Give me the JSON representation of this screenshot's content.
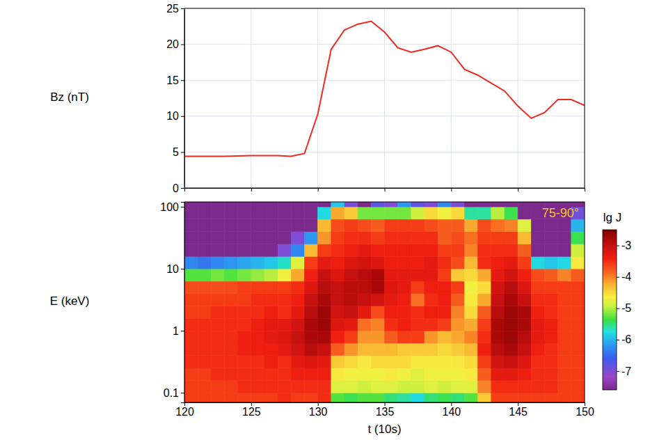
{
  "chart_data": [
    {
      "type": "line",
      "ylabel": "Bz (nT)",
      "x": [
        120,
        121,
        122,
        123,
        124,
        125,
        126,
        127,
        128,
        129,
        130,
        131,
        132,
        133,
        134,
        135,
        136,
        137,
        138,
        139,
        140,
        141,
        142,
        143,
        144,
        145,
        146,
        147,
        148,
        149,
        150
      ],
      "values": [
        4.4,
        4.4,
        4.4,
        4.4,
        4.45,
        4.5,
        4.5,
        4.5,
        4.4,
        4.8,
        10.3,
        19.3,
        22,
        22.8,
        23.2,
        21.7,
        19.5,
        18.9,
        19.3,
        19.8,
        18.9,
        16.5,
        15.7,
        14.6,
        13.5,
        11.4,
        9.7,
        10.5,
        12.3,
        12.3,
        11.5
      ],
      "color": "#ee2a1f",
      "xlim": [
        120,
        150
      ],
      "xticks": [
        120,
        125,
        130,
        135,
        140,
        145,
        150
      ],
      "ylim": [
        0,
        25
      ],
      "yticks": [
        0,
        5,
        10,
        15,
        20,
        25
      ],
      "grid": true,
      "tick_labels": "y"
    },
    {
      "type": "heatmap",
      "xlabel": "t (10s)",
      "ylabel": "E (keV)",
      "annotation": "75-90°",
      "log": "y",
      "xlim": [
        120,
        150
      ],
      "xticks": [
        120,
        125,
        130,
        135,
        140,
        145,
        150
      ],
      "ylim": [
        0.07,
        120
      ],
      "yticks": [
        0.1,
        1,
        10,
        100
      ],
      "x_bins": [
        120,
        121,
        122,
        123,
        124,
        125,
        126,
        127,
        128,
        129,
        130,
        131,
        132,
        133,
        134,
        135,
        136,
        137,
        138,
        139,
        140,
        141,
        142,
        143,
        144,
        145,
        146,
        147,
        148,
        149,
        150
      ],
      "y_bins": [
        0.0631,
        0.1,
        0.1585,
        0.2512,
        0.3981,
        0.631,
        1,
        1.585,
        2.512,
        3.981,
        6.31,
        10,
        15.85,
        25.12,
        39.81,
        63.1,
        100,
        158.5
      ],
      "cells": [
        [
          -3.6,
          -3.6,
          -3.6,
          -3.5,
          -3.5,
          -3.5,
          -3.5,
          -3.6,
          -3.6,
          -3.7,
          -5.3,
          -6.3,
          -7.6,
          -7.6,
          -7.6,
          -7.6,
          -7.6
        ],
        [
          -3.6,
          -3.6,
          -3.6,
          -3.5,
          -3.5,
          -3.5,
          -3.5,
          -3.6,
          -3.6,
          -3.7,
          -5.3,
          -6.4,
          -7.6,
          -7.6,
          -7.6,
          -7.6,
          -7.6
        ],
        [
          -3.6,
          -3.6,
          -3.5,
          -3.5,
          -3.5,
          -3.5,
          -3.5,
          -3.5,
          -3.6,
          -3.7,
          -5.2,
          -6.3,
          -7.6,
          -7.6,
          -7.6,
          -7.6,
          -7.6
        ],
        [
          -3.6,
          -3.6,
          -3.5,
          -3.5,
          -3.5,
          -3.5,
          -3.5,
          -3.5,
          -3.6,
          -3.7,
          -5.3,
          -6.2,
          -7.6,
          -7.6,
          -7.6,
          -7.6,
          -7.6
        ],
        [
          -3.6,
          -3.5,
          -3.5,
          -3.5,
          -3.4,
          -3.4,
          -3.5,
          -3.5,
          -3.6,
          -3.6,
          -5.2,
          -6.1,
          -7.6,
          -7.6,
          -7.6,
          -7.6,
          -7.6
        ],
        [
          -3.6,
          -3.5,
          -3.5,
          -3.5,
          -3.4,
          -3.4,
          -3.4,
          -3.5,
          -3.5,
          -3.6,
          -5.1,
          -6.0,
          -7.6,
          -7.6,
          -7.6,
          -7.6,
          -7.6
        ],
        [
          -3.6,
          -3.5,
          -3.5,
          -3.4,
          -3.4,
          -3.3,
          -3.3,
          -3.4,
          -3.5,
          -3.6,
          -5.0,
          -5.9,
          -7.6,
          -7.6,
          -7.6,
          -7.6,
          -7.6
        ],
        [
          -3.5,
          -3.5,
          -3.5,
          -3.5,
          -3.3,
          -3.2,
          -3.3,
          -3.5,
          -3.5,
          -3.6,
          -4.7,
          -5.7,
          -7.0,
          -7.6,
          -7.6,
          -7.6,
          -7.6
        ],
        [
          -3.6,
          -3.5,
          -3.4,
          -3.3,
          -3.1,
          -3.0,
          -3.1,
          -3.3,
          -3.4,
          -3.5,
          -4.2,
          -4.8,
          -6.3,
          -7.0,
          -7.6,
          -7.6,
          -7.6
        ],
        [
          -3.6,
          -3.5,
          -3.4,
          -3.2,
          -2.9,
          -2.8,
          -2.8,
          -2.9,
          -3.0,
          -3.2,
          -3.4,
          -3.6,
          -4.3,
          -6.2,
          -7.6,
          -7.6,
          -7.6
        ],
        [
          -3.5,
          -3.5,
          -3.4,
          -3.3,
          -3.0,
          -2.8,
          -2.7,
          -2.7,
          -2.8,
          -2.9,
          -3.0,
          -3.3,
          -3.6,
          -4.1,
          -4.3,
          -5.8,
          -7.6
        ],
        [
          -5.3,
          -4.8,
          -4.6,
          -4.4,
          -3.8,
          -3.4,
          -3.2,
          -3.1,
          -3.0,
          -3.0,
          -3.2,
          -3.4,
          -3.5,
          -3.6,
          -3.7,
          -4.2,
          -5.9
        ],
        [
          -5.4,
          -4.8,
          -4.7,
          -4.5,
          -4.1,
          -3.6,
          -3.3,
          -3.0,
          -2.9,
          -2.9,
          -3.0,
          -3.2,
          -3.4,
          -3.5,
          -3.6,
          -4.4,
          -7.0
        ],
        [
          -5.3,
          -4.9,
          -4.7,
          -4.6,
          -4.3,
          -4.1,
          -3.9,
          -3.3,
          -3.0,
          -2.9,
          -2.9,
          -3.1,
          -3.3,
          -3.5,
          -3.7,
          -5.2,
          -7.6
        ],
        [
          -5.3,
          -4.8,
          -4.7,
          -4.5,
          -4.3,
          -4.1,
          -4.0,
          -3.7,
          -3.1,
          -2.8,
          -2.8,
          -3.2,
          -3.4,
          -3.6,
          -3.8,
          -5.2,
          -6.8
        ],
        [
          -5.5,
          -4.8,
          -4.6,
          -4.5,
          -4.3,
          -3.8,
          -3.5,
          -3.4,
          -3.3,
          -3.2,
          -3.3,
          -3.4,
          -3.4,
          -3.5,
          -3.6,
          -5.2,
          -7.0
        ],
        [
          -5.6,
          -4.9,
          -4.7,
          -4.5,
          -4.4,
          -3.6,
          -3.4,
          -3.4,
          -3.4,
          -3.3,
          -3.3,
          -3.4,
          -3.4,
          -3.5,
          -3.6,
          -5.2,
          -6.2
        ],
        [
          -5.8,
          -4.9,
          -4.8,
          -4.6,
          -4.4,
          -3.6,
          -3.5,
          -3.5,
          -3.9,
          -3.6,
          -3.3,
          -3.4,
          -3.4,
          -3.5,
          -3.6,
          -4.9,
          -6.8
        ],
        [
          -5.5,
          -4.8,
          -4.7,
          -4.6,
          -4.4,
          -4.1,
          -3.5,
          -3.4,
          -3.5,
          -3.4,
          -3.3,
          -3.3,
          -3.4,
          -3.5,
          -3.7,
          -4.5,
          -7.0
        ],
        [
          -5.4,
          -4.9,
          -4.7,
          -4.6,
          -4.5,
          -4.3,
          -3.6,
          -3.4,
          -3.4,
          -3.4,
          -3.6,
          -3.5,
          -3.6,
          -3.8,
          -3.8,
          -4.7,
          -6.3
        ],
        [
          -5.5,
          -4.8,
          -4.7,
          -4.6,
          -4.4,
          -4.2,
          -4.1,
          -4.0,
          -3.8,
          -3.6,
          -4.4,
          -3.7,
          -3.6,
          -3.7,
          -3.8,
          -4.5,
          -7.0
        ],
        [
          -5.3,
          -4.8,
          -4.6,
          -4.5,
          -4.3,
          -4.0,
          -4.2,
          -4.5,
          -4.6,
          -4.7,
          -4.5,
          -4.3,
          -4.0,
          -3.9,
          -4.2,
          -5.6,
          -7.6
        ],
        [
          -4.4,
          -4.0,
          -3.8,
          -3.6,
          -3.4,
          -3.5,
          -3.6,
          -3.8,
          -4.2,
          -4.5,
          -4.2,
          -3.5,
          -3.5,
          -3.6,
          -3.7,
          -5.6,
          -7.6
        ],
        [
          -3.6,
          -3.5,
          -3.3,
          -3.1,
          -2.9,
          -2.8,
          -2.8,
          -2.9,
          -3.0,
          -3.1,
          -3.3,
          -3.4,
          -3.5,
          -3.6,
          -3.9,
          -5.0,
          -7.6
        ],
        [
          -3.6,
          -3.5,
          -3.3,
          -3.0,
          -2.8,
          -2.7,
          -2.7,
          -2.7,
          -2.8,
          -2.9,
          -3.1,
          -3.3,
          -3.5,
          -3.6,
          -4.0,
          -5.4,
          -7.6
        ],
        [
          -3.6,
          -3.5,
          -3.4,
          -3.2,
          -3.0,
          -2.9,
          -2.8,
          -2.8,
          -3.0,
          -3.2,
          -3.4,
          -3.6,
          -3.8,
          -4.3,
          -4.8,
          -7.6,
          -7.6
        ],
        [
          -3.6,
          -3.5,
          -3.5,
          -3.5,
          -3.4,
          -3.3,
          -3.3,
          -3.4,
          -3.5,
          -3.6,
          -3.7,
          -5.8,
          -7.6,
          -7.6,
          -7.6,
          -7.6,
          -7.6
        ],
        [
          -3.6,
          -3.5,
          -3.5,
          -3.5,
          -3.5,
          -3.4,
          -3.4,
          -3.5,
          -3.5,
          -3.6,
          -3.8,
          -5.9,
          -7.6,
          -7.6,
          -7.6,
          -7.6,
          -7.6
        ],
        [
          -3.6,
          -3.6,
          -3.6,
          -3.6,
          -3.6,
          -3.6,
          -3.6,
          -3.6,
          -3.6,
          -3.6,
          -4.0,
          -5.8,
          -7.6,
          -7.6,
          -7.6,
          -7.6,
          -7.6
        ],
        [
          -3.6,
          -3.6,
          -3.6,
          -3.6,
          -3.6,
          -3.6,
          -3.6,
          -3.6,
          -3.6,
          -3.6,
          -3.8,
          -4.6,
          -4.9,
          -5.4,
          -6.0,
          -6.9,
          -7.6
        ]
      ],
      "colorbar": {
        "label": "lg J",
        "range": [
          -7.6,
          -2.5
        ],
        "ticks": [
          -3,
          -4,
          -5,
          -6,
          -7
        ]
      }
    }
  ]
}
